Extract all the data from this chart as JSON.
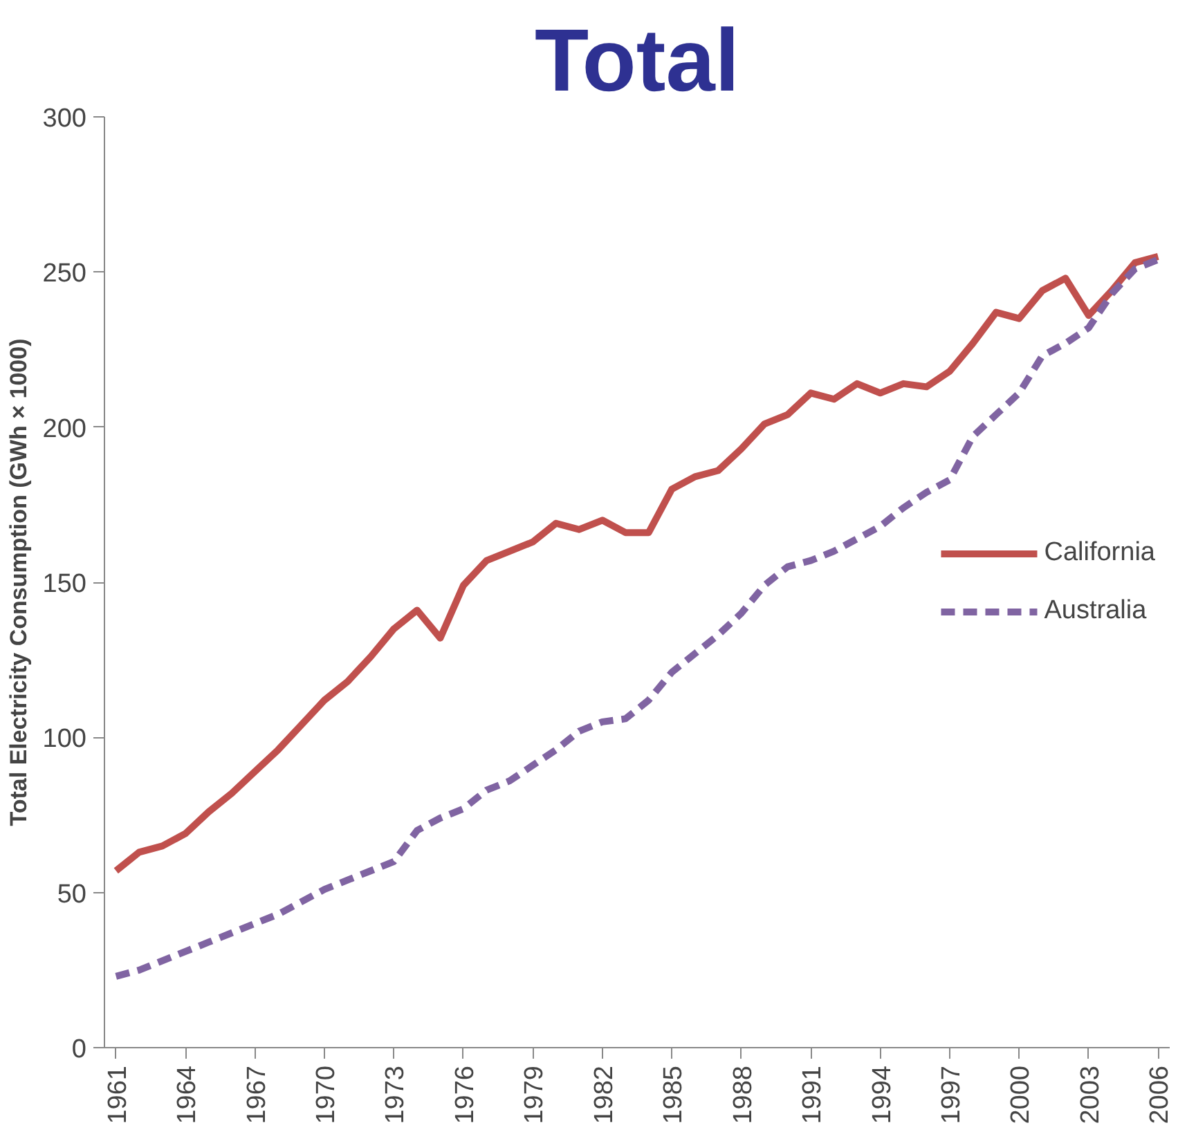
{
  "chart_data": {
    "type": "line",
    "title": "Total",
    "ylabel": "Total Electricity Consumption (GWh × 1000)",
    "x": [
      1961,
      1962,
      1963,
      1964,
      1965,
      1966,
      1967,
      1968,
      1969,
      1970,
      1971,
      1972,
      1973,
      1974,
      1975,
      1976,
      1977,
      1978,
      1979,
      1980,
      1981,
      1982,
      1983,
      1984,
      1985,
      1986,
      1987,
      1988,
      1989,
      1990,
      1991,
      1992,
      1993,
      1994,
      1995,
      1996,
      1997,
      1998,
      1999,
      2000,
      2001,
      2002,
      2003,
      2004,
      2005,
      2006
    ],
    "series": [
      {
        "name": "California",
        "color": "#c0504d",
        "line_style": "solid",
        "values": [
          57,
          63,
          65,
          69,
          76,
          82,
          89,
          96,
          104,
          112,
          118,
          126,
          135,
          141,
          132,
          149,
          157,
          160,
          163,
          169,
          167,
          170,
          166,
          166,
          180,
          184,
          186,
          193,
          201,
          204,
          211,
          209,
          214,
          211,
          214,
          213,
          218,
          227,
          237,
          235,
          244,
          248,
          236,
          244,
          253,
          255
        ]
      },
      {
        "name": "Australia",
        "color": "#8064a2",
        "line_style": "dashed",
        "values": [
          23,
          25,
          28,
          31,
          34,
          37,
          40,
          43,
          47,
          51,
          54,
          57,
          60,
          70,
          74,
          77,
          83,
          86,
          91,
          96,
          102,
          105,
          106,
          112,
          121,
          127,
          133,
          140,
          149,
          155,
          157,
          160,
          164,
          168,
          174,
          179,
          183,
          197,
          204,
          211,
          223,
          227,
          232,
          243,
          251,
          254
        ]
      }
    ],
    "xlim": [
      1960.5,
      2006.5
    ],
    "xticks": [
      1961,
      1964,
      1967,
      1970,
      1973,
      1976,
      1979,
      1982,
      1985,
      1988,
      1991,
      1994,
      1997,
      2000,
      2003,
      2006
    ],
    "ylim": [
      0,
      300
    ],
    "yticks": [
      0,
      50,
      100,
      150,
      200,
      250,
      300
    ],
    "grid": false,
    "legend": "right",
    "marker": "none"
  }
}
